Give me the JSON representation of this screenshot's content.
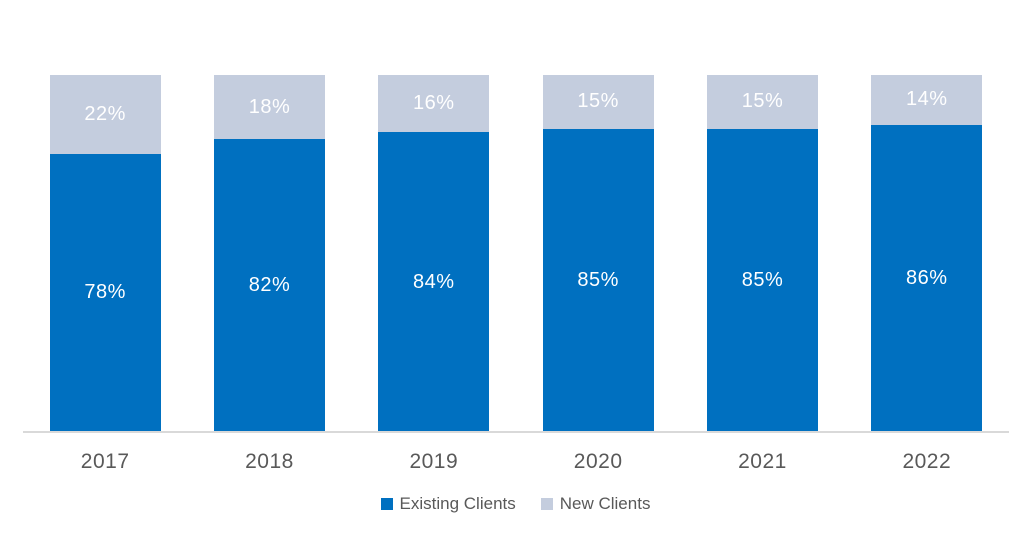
{
  "chart_data": {
    "type": "bar",
    "stacked": true,
    "categories": [
      "2017",
      "2018",
      "2019",
      "2020",
      "2021",
      "2022"
    ],
    "series": [
      {
        "name": "Existing Clients",
        "color": "#0070C0",
        "values": [
          78,
          82,
          84,
          85,
          85,
          86
        ],
        "data_labels": [
          "78%",
          "82%",
          "84%",
          "85%",
          "85%",
          "86%"
        ]
      },
      {
        "name": "New Clients",
        "color": "#C4CDDE",
        "values": [
          22,
          18,
          16,
          15,
          15,
          14
        ],
        "data_labels": [
          "22%",
          "18%",
          "16%",
          "15%",
          "15%",
          "14%"
        ]
      }
    ],
    "ylim": [
      0,
      100
    ],
    "grid": false,
    "y_axis_visible": false,
    "legend_position": "bottom",
    "data_label_color": "#FFFFFF",
    "category_label_color": "#595959",
    "legend_text_color": "#595959",
    "axis_line_color": "#D9D9D9",
    "background_color": "#FFFFFF"
  }
}
